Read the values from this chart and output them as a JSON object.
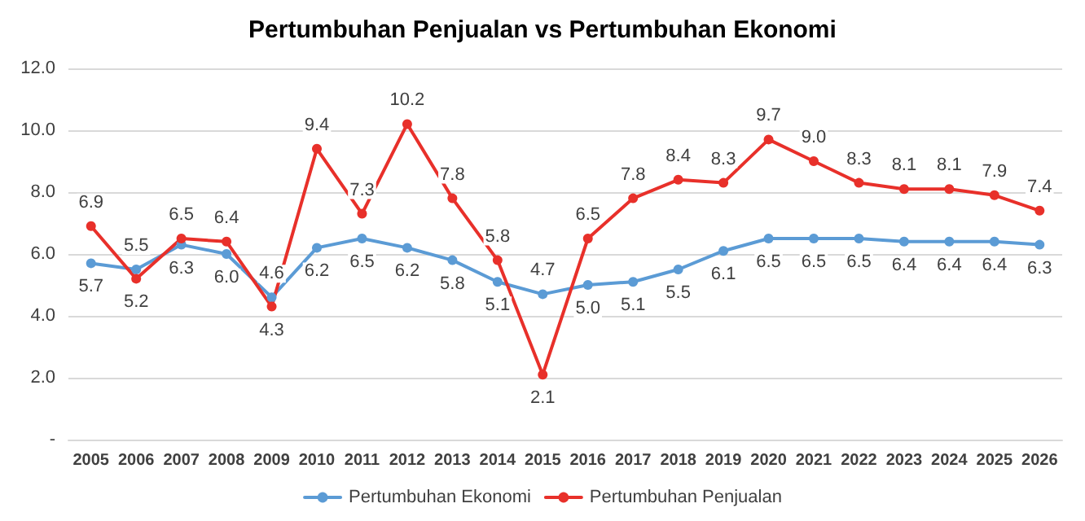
{
  "chart_data": {
    "type": "line",
    "title": "Pertumbuhan Penjualan vs Pertumbuhan Ekonomi",
    "categories": [
      "2005",
      "2006",
      "2007",
      "2008",
      "2009",
      "2010",
      "2011",
      "2012",
      "2013",
      "2014",
      "2015",
      "2016",
      "2017",
      "2018",
      "2019",
      "2020",
      "2021",
      "2022",
      "2023",
      "2024",
      "2025",
      "2026"
    ],
    "series": [
      {
        "name": "Pertumbuhan Ekonomi",
        "color": "#5b9bd5",
        "values": [
          5.7,
          5.5,
          6.3,
          6.0,
          4.6,
          6.2,
          6.5,
          6.2,
          5.8,
          5.1,
          4.7,
          5.0,
          5.1,
          5.5,
          6.1,
          6.5,
          6.5,
          6.5,
          6.4,
          6.4,
          6.4,
          6.3
        ],
        "value_labels": [
          "5.7",
          "5.5",
          "6.3",
          "6.0",
          "4.6",
          "6.2",
          "6.5",
          "6.2",
          "5.8",
          "5.1",
          "4.7",
          "5.0",
          "5.1",
          "5.5",
          "6.1",
          "6.5",
          "6.5",
          "6.5",
          "6.4",
          "6.4",
          "6.4",
          "6.3"
        ]
      },
      {
        "name": "Pertumbuhan Penjualan",
        "color": "#e8302a",
        "values": [
          6.9,
          5.2,
          6.5,
          6.4,
          4.3,
          9.4,
          7.3,
          10.2,
          7.8,
          5.8,
          2.1,
          6.5,
          7.8,
          8.4,
          8.3,
          9.7,
          9.0,
          8.3,
          8.1,
          8.1,
          7.9,
          7.4
        ],
        "value_labels": [
          "6.9",
          "5.2",
          "6.5",
          "6.4",
          "4.3",
          "9.4",
          "7.3",
          "10.2",
          "7.8",
          "5.8",
          "2.1",
          "6.5",
          "7.8",
          "8.4",
          "8.3",
          "9.7",
          "9.0",
          "8.3",
          "8.1",
          "8.1",
          "7.9",
          "7.4"
        ]
      }
    ],
    "ylim": [
      0,
      12
    ],
    "yticks": [
      {
        "value": 0,
        "label": "-"
      },
      {
        "value": 2,
        "label": "2.0"
      },
      {
        "value": 4,
        "label": "4.0"
      },
      {
        "value": 6,
        "label": "6.0"
      },
      {
        "value": 8,
        "label": "8.0"
      },
      {
        "value": 10,
        "label": "10.0"
      },
      {
        "value": 12,
        "label": "12.0"
      }
    ],
    "grid": "y",
    "legend": "bottom",
    "marker": "circle",
    "line_style": "solid"
  }
}
